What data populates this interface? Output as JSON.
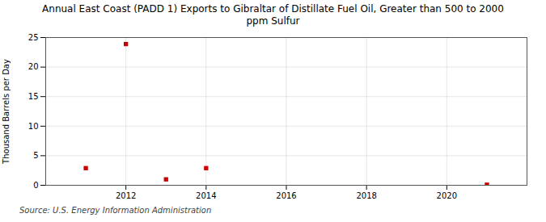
{
  "chart_data": {
    "type": "scatter",
    "title": "Annual East Coast (PADD 1) Exports to Gibraltar of Distillate Fuel Oil, Greater than 500 to 2000\nppm Sulfur",
    "ylabel": "Thousand Barrels per Day",
    "source": "Source: U.S. Energy Information Administration",
    "x": [
      2011,
      2012,
      2013,
      2014,
      2021
    ],
    "values": [
      2.9,
      23.9,
      1.0,
      2.9,
      0.1
    ],
    "color": "#cc0000",
    "marker": "square",
    "xlim": [
      2010.0,
      2022.0
    ],
    "ylim": [
      0,
      25
    ],
    "xticks": [
      2012,
      2014,
      2016,
      2018,
      2020
    ],
    "yticks": [
      0,
      5,
      10,
      15,
      20,
      25
    ],
    "grid": true
  }
}
